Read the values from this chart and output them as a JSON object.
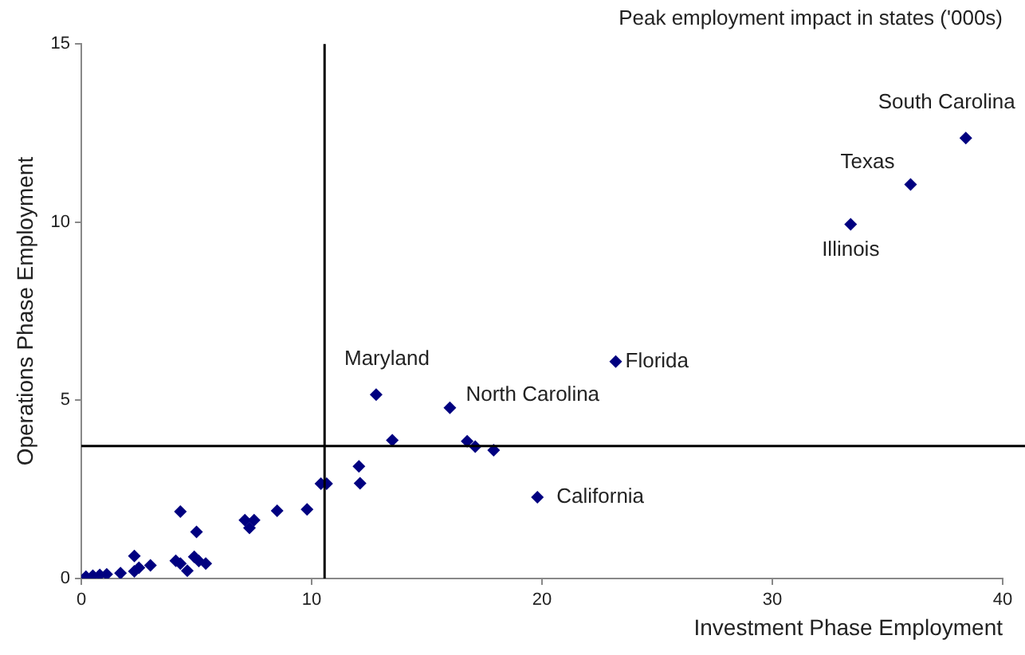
{
  "chart_data": {
    "type": "scatter",
    "title": "Peak employment impact in states ('000s)",
    "xlabel": "Investment Phase Employment",
    "ylabel": "Operations Phase Employment",
    "x": [
      0.2,
      0.5,
      0.8,
      1.1,
      1.7,
      2.3,
      2.3,
      2.5,
      3.0,
      4.3,
      4.1,
      4.3,
      4.6,
      5.0,
      4.9,
      5.1,
      5.4,
      7.1,
      7.5,
      7.3,
      8.5,
      9.8,
      10.4,
      10.65,
      12.05,
      12.1,
      12.8,
      13.5,
      16.0,
      16.75,
      17.1,
      17.9,
      19.8,
      23.2,
      33.4,
      36.0,
      38.4
    ],
    "series": [
      {
        "color": "#000080",
        "values": [
          0.05,
          0.08,
          0.1,
          0.12,
          0.15,
          0.63,
          0.2,
          0.3,
          0.37,
          1.88,
          0.5,
          0.42,
          0.22,
          1.31,
          0.61,
          0.49,
          0.42,
          1.64,
          1.64,
          1.42,
          1.9,
          1.94,
          2.66,
          2.66,
          3.15,
          2.67,
          5.16,
          3.88,
          4.79,
          3.85,
          3.7,
          3.6,
          2.28,
          6.09,
          9.94,
          11.06,
          12.36
        ]
      }
    ],
    "xlim": [
      0,
      40
    ],
    "ylim": [
      0,
      15
    ],
    "xticks": [
      0,
      10,
      20,
      30,
      40
    ],
    "yticks": [
      0,
      5,
      10,
      15
    ],
    "grid": false,
    "legend": false,
    "marker": "diamond",
    "ref_lines": [
      {
        "axis": "x",
        "value": 10.56,
        "color": "#000000"
      },
      {
        "axis": "y",
        "value": 3.72,
        "color": "#000000"
      }
    ],
    "annotations": [
      {
        "text": "Maryland",
        "x": 12.8,
        "y": 5.16
      },
      {
        "text": "North Carolina",
        "x": 16.0,
        "y": 4.79
      },
      {
        "text": "Florida",
        "x": 23.2,
        "y": 6.09
      },
      {
        "text": "California",
        "x": 19.8,
        "y": 2.28
      },
      {
        "text": "Illinois",
        "x": 33.4,
        "y": 9.94
      },
      {
        "text": "Texas",
        "x": 36.0,
        "y": 11.06
      },
      {
        "text": "South Carolina",
        "x": 38.4,
        "y": 12.36
      }
    ]
  }
}
